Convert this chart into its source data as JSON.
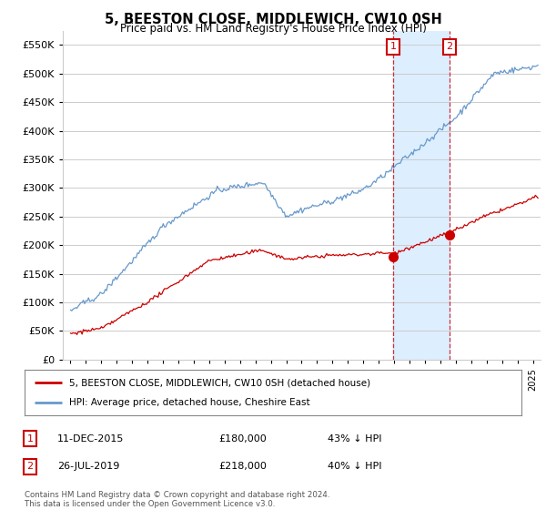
{
  "title": "5, BEESTON CLOSE, MIDDLEWICH, CW10 0SH",
  "subtitle": "Price paid vs. HM Land Registry's House Price Index (HPI)",
  "ylabel_ticks": [
    0,
    50000,
    100000,
    150000,
    200000,
    250000,
    300000,
    350000,
    400000,
    450000,
    500000,
    550000
  ],
  "ylim": [
    0,
    575000
  ],
  "xlim_start": 1994.5,
  "xlim_end": 2025.5,
  "annotation1": {
    "date": "11-DEC-2015",
    "price": 180000,
    "label": "43% ↓ HPI",
    "num": "1",
    "x": 2015.95
  },
  "annotation2": {
    "date": "26-JUL-2019",
    "price": 218000,
    "label": "40% ↓ HPI",
    "num": "2",
    "x": 2019.58
  },
  "legend_label_red": "5, BEESTON CLOSE, MIDDLEWICH, CW10 0SH (detached house)",
  "legend_label_blue": "HPI: Average price, detached house, Cheshire East",
  "footer": "Contains HM Land Registry data © Crown copyright and database right 2024.\nThis data is licensed under the Open Government Licence v3.0.",
  "red_color": "#cc0000",
  "blue_color": "#6699cc",
  "bg_color": "#ffffff",
  "grid_color": "#cccccc",
  "highlight_color": "#ddeeff"
}
